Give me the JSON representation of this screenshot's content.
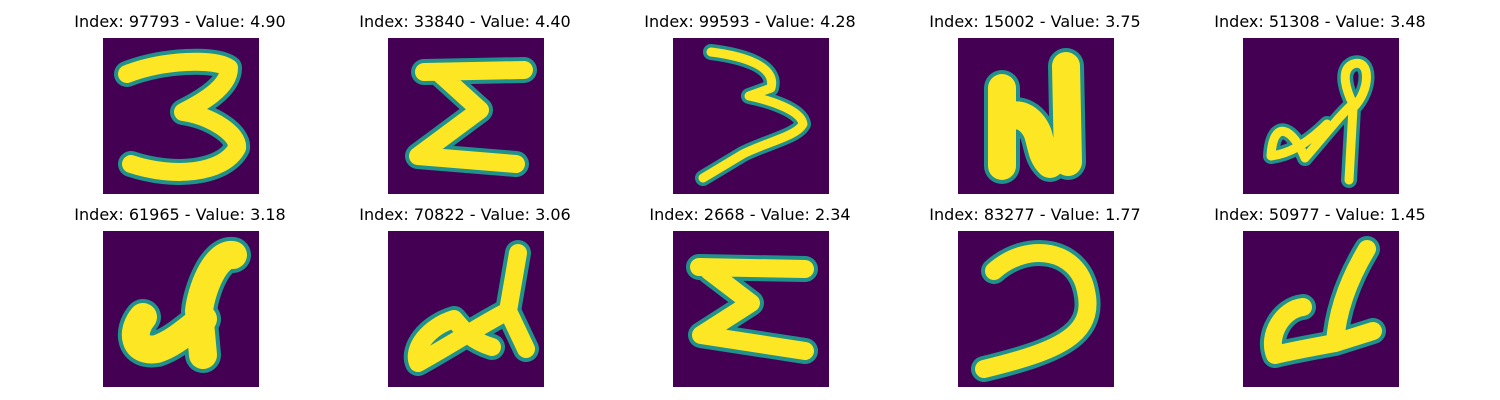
{
  "colors": {
    "background": "#440154",
    "edge": "#21918c",
    "stroke": "#fde725"
  },
  "panels": [
    {
      "title": "Index: 97793 - Value: 4.90",
      "glyph": "three-icon"
    },
    {
      "title": "Index: 33840 - Value: 4.40",
      "glyph": "sigma-icon"
    },
    {
      "title": "Index: 99593 - Value: 4.28",
      "glyph": "three-icon"
    },
    {
      "title": "Index: 15002 - Value: 3.75",
      "glyph": "n-letter-icon"
    },
    {
      "title": "Index: 51308 - Value: 3.48",
      "glyph": "loop-scribble-icon"
    },
    {
      "title": "Index: 61965 - Value: 3.18",
      "glyph": "scribble-icon"
    },
    {
      "title": "Index: 70822 - Value: 3.06",
      "glyph": "scribble-icon"
    },
    {
      "title": "Index: 2668 - Value: 2.34",
      "glyph": "sigma-icon"
    },
    {
      "title": "Index: 83277 - Value: 1.77",
      "glyph": "hook-icon"
    },
    {
      "title": "Index: 50977 - Value: 1.45",
      "glyph": "scribble-icon"
    }
  ]
}
